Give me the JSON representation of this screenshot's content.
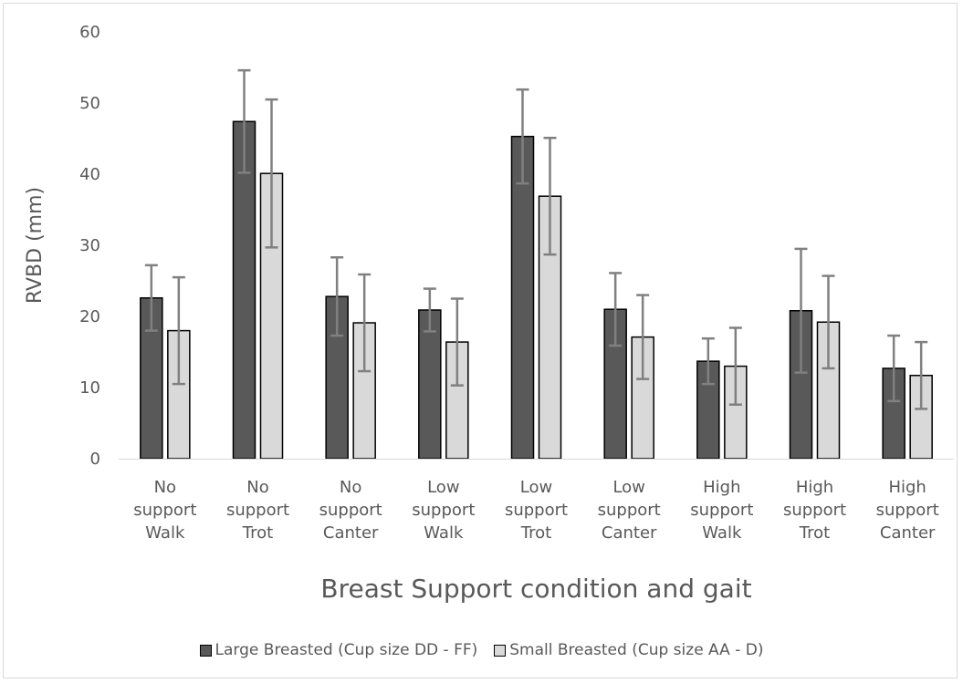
{
  "chart_data": {
    "type": "bar",
    "title": "",
    "xlabel": "Breast Support condition and gait",
    "ylabel": "RVBD (mm)",
    "ylim": [
      0,
      60
    ],
    "yticks": [
      0,
      10,
      20,
      30,
      40,
      50,
      60
    ],
    "grid": false,
    "legend_position": "bottom",
    "categories": [
      [
        "No",
        "support",
        "Walk"
      ],
      [
        "No",
        "support",
        "Trot"
      ],
      [
        "No",
        "support",
        "Canter"
      ],
      [
        "Low",
        "support",
        "Walk"
      ],
      [
        "Low",
        "support",
        "Trot"
      ],
      [
        "Low",
        "support",
        "Canter"
      ],
      [
        "High",
        "support",
        "Walk"
      ],
      [
        "High",
        "support",
        "Trot"
      ],
      [
        "High",
        "support",
        "Canter"
      ]
    ],
    "series": [
      {
        "name": "Large Breasted (Cup size DD - FF)",
        "color": "#595959",
        "values": [
          22.6,
          47.4,
          22.8,
          20.9,
          45.3,
          21.0,
          13.7,
          20.8,
          12.7
        ],
        "error": [
          4.6,
          7.2,
          5.5,
          3.0,
          6.6,
          5.1,
          3.2,
          8.7,
          4.6
        ]
      },
      {
        "name": "Small Breasted (Cup size AA - D)",
        "color": "#d9d9d9",
        "values": [
          18.0,
          40.1,
          19.1,
          16.4,
          36.9,
          17.1,
          13.0,
          19.2,
          11.7
        ],
        "error": [
          7.5,
          10.4,
          6.8,
          6.1,
          8.2,
          5.9,
          5.4,
          6.5,
          4.7
        ]
      }
    ]
  }
}
